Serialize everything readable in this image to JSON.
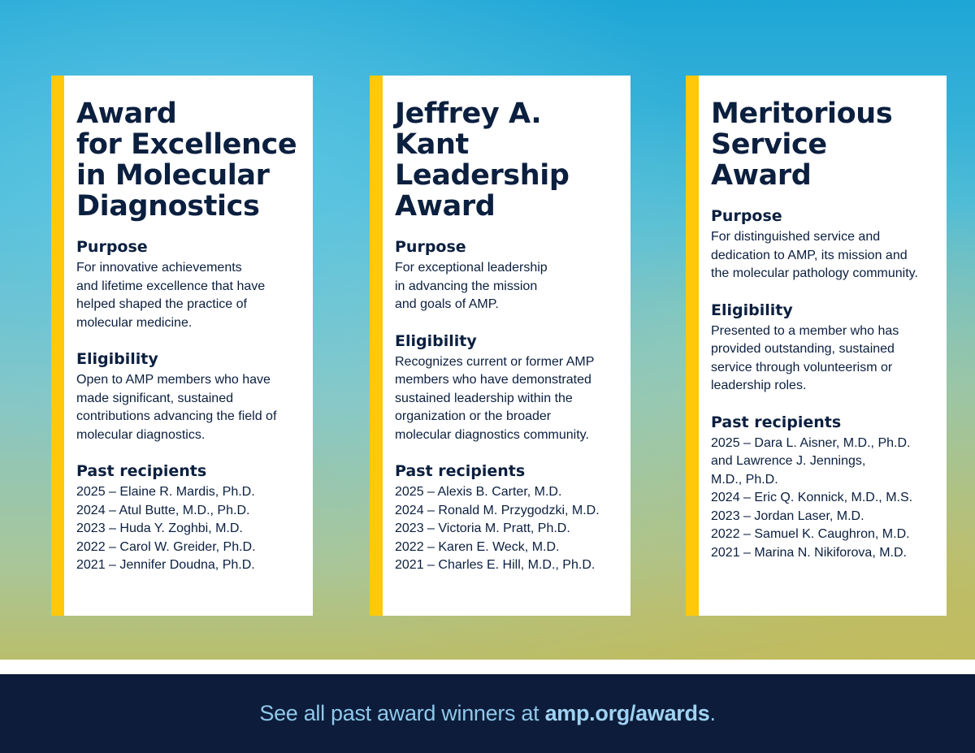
{
  "cards": [
    {
      "title": "Award\nfor Excellence\nin Molecular\nDiagnostics",
      "purpose_heading": "Purpose",
      "purpose_text": "For innovative achievements\nand lifetime excellence that have\nhelped shaped the practice of\nmolecular medicine.",
      "eligibility_heading": "Eligibility",
      "eligibility_text": "Open to AMP members who have\nmade significant, sustained\ncontributions advancing the field of\nmolecular diagnostics.",
      "recipients_heading": "Past recipients",
      "recipients": [
        "2025 – Elaine R. Mardis, Ph.D.",
        "2024 – Atul Butte, M.D., Ph.D.",
        "2023 – Huda Y. Zoghbi, M.D.",
        "2022 – Carol W. Greider, Ph.D.",
        "2021 – Jennifer Doudna, Ph.D."
      ]
    },
    {
      "title": "Jeffrey A. Kant\nLeadership\nAward",
      "purpose_heading": "Purpose",
      "purpose_text": "For exceptional leadership\nin advancing the mission\nand goals of AMP.",
      "eligibility_heading": "Eligibility",
      "eligibility_text": "Recognizes current or former AMP\nmembers who have demonstrated\nsustained leadership within the\norganization or the broader\nmolecular diagnostics community.",
      "recipients_heading": "Past recipients",
      "recipients": [
        "2025 – Alexis B. Carter, M.D.",
        "2024 – Ronald M. Przygodzki, M.D.",
        "2023 – Victoria M. Pratt, Ph.D.",
        "2022 – Karen E. Weck, M.D.",
        "2021 – Charles E. Hill, M.D., Ph.D."
      ]
    },
    {
      "title": "Meritorious\nService Award",
      "purpose_heading": "Purpose",
      "purpose_text": "For distinguished service and\ndedication to AMP, its mission and\nthe molecular pathology community.",
      "eligibility_heading": "Eligibility",
      "eligibility_text": "Presented to a member who has\nprovided outstanding, sustained\nservice through volunteerism or\nleadership roles.",
      "recipients_heading": "Past recipients",
      "recipients": [
        "2025 – Dara L. Aisner, M.D., Ph.D.\n             and Lawrence J. Jennings,\n             M.D., Ph.D.",
        "2024 – Eric Q. Konnick, M.D., M.S.",
        "2023 – Jordan Laser, M.D.",
        "2022 – Samuel K. Caughron, M.D.",
        "2021 – Marina N. Nikiforova, M.D."
      ]
    }
  ],
  "footer": {
    "text_prefix": "See all past award winners at ",
    "link": "amp.org/awards",
    "text_suffix": "."
  },
  "colors": {
    "accent_bar": "#ffc80a",
    "navy": "#0b1f3f",
    "footer_bg": "#0c1c3a",
    "footer_text": "#8fc8ea"
  }
}
